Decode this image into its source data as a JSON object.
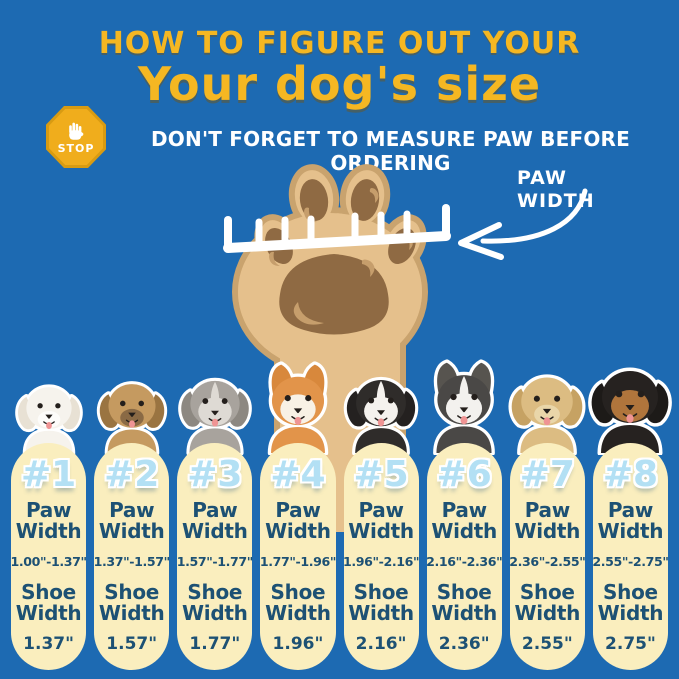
{
  "header": {
    "title_line1": "HOW TO FIGURE OUT YOUR",
    "title_line2": "Your dog's size",
    "stop_label": "STOP",
    "warning": "DON'T FORGET TO MEASURE PAW BEFORE ORDERING"
  },
  "paw_diagram": {
    "label_line1": "PAW",
    "label_line2": "WIDTH"
  },
  "labels": {
    "paw_line1": "Paw",
    "paw_line2": "Width",
    "shoe_line1": "Shoe",
    "shoe_line2": "Width"
  },
  "colors": {
    "background_blue": "#1d6ab2",
    "title_yellow": "#f5b722",
    "pill_cream": "#faeebe",
    "text_navy": "#1d5174",
    "number_blue": "#b3e0f4",
    "paw_tan": "#e5c08c",
    "paw_outline": "#c9a36e",
    "pad_brown": "#8f6a43",
    "pad_highlight": "#c69e6c",
    "stop_gold": "#f0ad1c",
    "ruler_white": "#ffffff"
  },
  "columns": [
    {
      "number": "#1",
      "paw_range": "1.00\"-1.37\"",
      "shoe_width": "1.37\"",
      "dog": {
        "breed": "bichon-frise",
        "fur": "#f6f3ed",
        "ear": "#e8e1d4",
        "muzzle": "#fdfcfa",
        "ears": "floppy"
      }
    },
    {
      "number": "#2",
      "paw_range": "1.37\"-1.57\"",
      "shoe_width": "1.57\"",
      "dog": {
        "breed": "yorkshire-terrier",
        "fur": "#c59a60",
        "ear": "#9a7441",
        "muzzle": "#8a6a45",
        "ears": "floppy"
      }
    },
    {
      "number": "#3",
      "paw_range": "1.57\"-1.77\"",
      "shoe_width": "1.77\"",
      "dog": {
        "breed": "terrier-mix",
        "fur": "#a8a39d",
        "ear": "#8d8881",
        "muzzle": "#dedad4",
        "mask": "#dedad4",
        "blaze": true,
        "ears": "floppy"
      }
    },
    {
      "number": "#4",
      "paw_range": "1.77\"-1.96\"",
      "shoe_width": "1.96\"",
      "dog": {
        "breed": "shiba-inu",
        "fur": "#e2944a",
        "ear": "#d8883c",
        "muzzle": "#f8f1e5",
        "mask": "#f8f1e5",
        "ears": "pointy"
      }
    },
    {
      "number": "#5",
      "paw_range": "1.96\"-2.16\"",
      "shoe_width": "2.16\"",
      "dog": {
        "breed": "border-collie",
        "fur": "#2f2c2a",
        "ear": "#242120",
        "muzzle": "#f5f2ee",
        "mask": "#f5f2ee",
        "blaze": true,
        "ears": "floppy"
      }
    },
    {
      "number": "#6",
      "paw_range": "2.16\"-2.36\"",
      "shoe_width": "2.36\"",
      "dog": {
        "breed": "husky",
        "fur": "#4a4846",
        "ear": "#57544f",
        "muzzle": "#f3f1ee",
        "mask": "#f3f1ee",
        "blaze": true,
        "ears": "pointy"
      }
    },
    {
      "number": "#7",
      "paw_range": "2.36\"-2.55\"",
      "shoe_width": "2.55\"",
      "dog": {
        "breed": "golden-retriever",
        "fur": "#dcbc82",
        "ear": "#c6a263",
        "muzzle": "#e9d6a9",
        "ears": "floppy"
      }
    },
    {
      "number": "#8",
      "paw_range": "2.55\"-2.75\"",
      "shoe_width": "2.75\"",
      "dog": {
        "breed": "rottweiler",
        "fur": "#262220",
        "ear": "#1d1a18",
        "muzzle": "#b0753c",
        "mask": "#b0753c",
        "ears": "floppy"
      }
    }
  ]
}
